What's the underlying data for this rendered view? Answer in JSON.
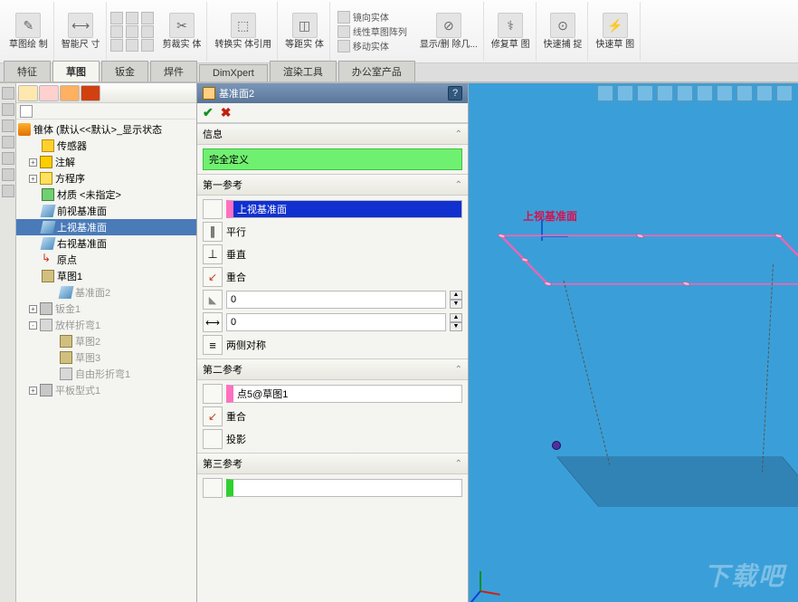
{
  "ribbon": {
    "g1": "草图绘\n制",
    "g2": "智能尺\n寸",
    "g3": "剪裁实\n体",
    "g4": "转换实\n体引用",
    "g5": "等距实\n体",
    "sub1": "镜向实体",
    "sub2": "线性草图阵列",
    "sub3": "移动实体",
    "g6": "显示/删\n除几...",
    "g7": "修复草\n图",
    "g8": "快速捕\n捉",
    "g9": "快速草\n图"
  },
  "tabs": [
    "特征",
    "草图",
    "钣金",
    "焊件",
    "DimXpert",
    "渲染工具",
    "办公室产品"
  ],
  "tabs_active": 1,
  "tree": {
    "root": "锥体 (默认<<默认>_显示状态",
    "items": [
      {
        "d": 1,
        "ico": "ni-sensor",
        "t": "传感器"
      },
      {
        "d": 1,
        "ico": "ni-annot",
        "t": "注解",
        "exp": "+"
      },
      {
        "d": 1,
        "ico": "ni-eq",
        "t": "方程序",
        "exp": "+"
      },
      {
        "d": 1,
        "ico": "ni-mat",
        "t": "材质 <未指定>"
      },
      {
        "d": 1,
        "ico": "ni-plane",
        "t": "前视基准面"
      },
      {
        "d": 1,
        "ico": "ni-plane",
        "t": "上视基准面",
        "sel": true
      },
      {
        "d": 1,
        "ico": "ni-plane",
        "t": "右视基准面"
      },
      {
        "d": 1,
        "ico": "ni-origin",
        "t": "原点"
      },
      {
        "d": 1,
        "ico": "ni-sketch",
        "t": "草图1"
      },
      {
        "d": 2,
        "ico": "ni-plane",
        "t": "基准面2",
        "dim": true
      },
      {
        "d": 1,
        "ico": "ni-sm",
        "t": "钣金1",
        "dim": true,
        "exp": "+"
      },
      {
        "d": 1,
        "ico": "ni-bend",
        "t": "放样折弯1",
        "dim": true,
        "exp": "-"
      },
      {
        "d": 2,
        "ico": "ni-sketch",
        "t": "草图2",
        "dim": true
      },
      {
        "d": 2,
        "ico": "ni-sketch",
        "t": "草图3",
        "dim": true
      },
      {
        "d": 2,
        "ico": "ni-bend",
        "t": "自由形折弯1",
        "dim": true
      },
      {
        "d": 1,
        "ico": "ni-sm",
        "t": "平板型式1",
        "dim": true,
        "exp": "+"
      }
    ]
  },
  "prop": {
    "title": "基准面2",
    "info_h": "信息",
    "defined": "完全定义",
    "ref1_h": "第一参考",
    "ref1_val": "上视基准面",
    "parallel": "平行",
    "perp": "垂直",
    "coinc": "重合",
    "angle_val": "0",
    "dist_val": "0",
    "sym": "两侧对称",
    "ref2_h": "第二参考",
    "ref2_val": "点5@草图1",
    "coinc2": "重合",
    "proj": "投影",
    "ref3_h": "第三参考",
    "ref3_val": ""
  },
  "view": {
    "plane_label": "上视基准面"
  },
  "watermark": "下载吧"
}
